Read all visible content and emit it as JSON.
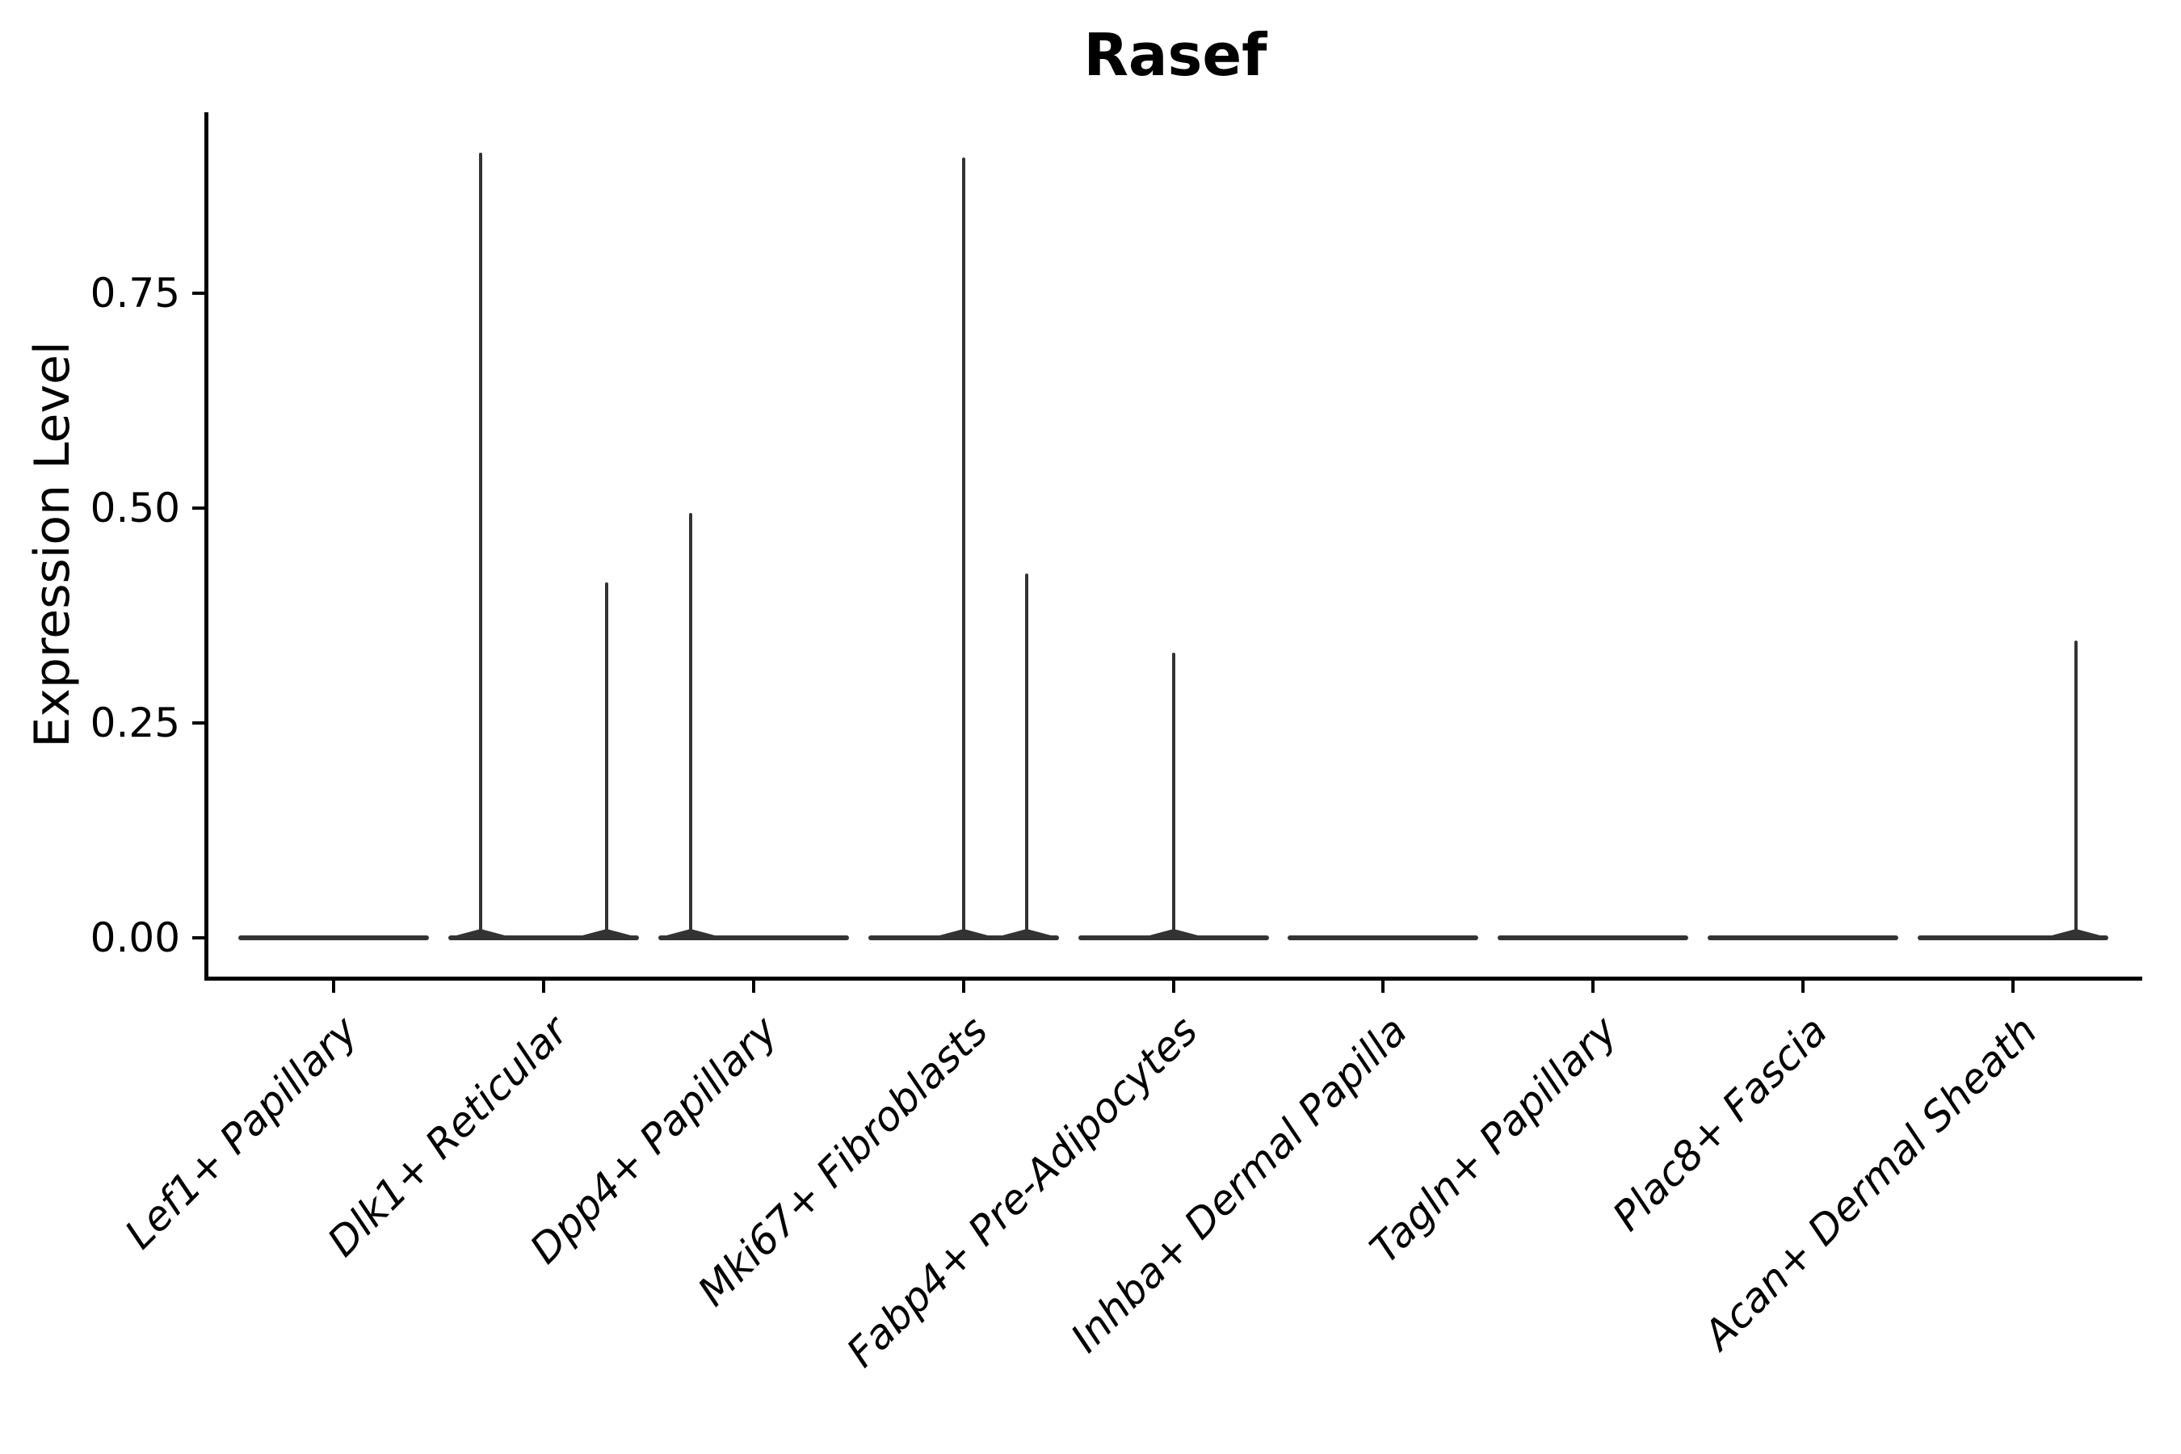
{
  "figure": {
    "background": "#ffffff",
    "stroke_color": "#333333",
    "axis_color": "#000000"
  },
  "chart_data": {
    "type": "violin",
    "title": "Rasef",
    "ylabel": "Expression Level",
    "xlabel": "",
    "grid": "off",
    "legend": "none",
    "ylim": [
      -0.045,
      0.961
    ],
    "yticks": [
      {
        "label": "0.00",
        "value": 0.0
      },
      {
        "label": "0.25",
        "value": 0.25
      },
      {
        "label": "0.50",
        "value": 0.5
      },
      {
        "label": "0.75",
        "value": 0.75
      }
    ],
    "categories": [
      "Lef1+ Papillary",
      "Dlk1+ Reticular",
      "Dpp4+ Papillary",
      "Mki67+ Fibroblasts",
      "Fabp4+ Pre-Adipocytes",
      "Inhba+ Dermal Papilla",
      "Tagln+ Papillary",
      "Plac8+ Fascia",
      "Acan+ Dermal Sheath"
    ],
    "violin_width": 0.91,
    "violins": [
      {
        "category": "Lef1+ Papillary",
        "base_value": 0.0,
        "spikes": []
      },
      {
        "category": "Dlk1+ Reticular",
        "base_value": 0.0,
        "spikes": [
          {
            "offset": -0.3,
            "max": 0.914
          },
          {
            "offset": 0.3,
            "max": 0.414
          }
        ]
      },
      {
        "category": "Dpp4+ Papillary",
        "base_value": 0.0,
        "spikes": [
          {
            "offset": -0.3,
            "max": 0.495
          }
        ]
      },
      {
        "category": "Mki67+ Fibroblasts",
        "base_value": 0.0,
        "spikes": [
          {
            "offset": 0.0,
            "max": 0.908
          },
          {
            "offset": 0.3,
            "max": 0.424
          }
        ]
      },
      {
        "category": "Fabp4+ Pre-Adipocytes",
        "base_value": 0.0,
        "spikes": [
          {
            "offset": 0.0,
            "max": 0.332
          }
        ]
      },
      {
        "category": "Inhba+ Dermal Papilla",
        "base_value": 0.0,
        "spikes": []
      },
      {
        "category": "Tagln+ Papillary",
        "base_value": 0.0,
        "spikes": []
      },
      {
        "category": "Plac8+ Fascia",
        "base_value": 0.0,
        "spikes": []
      },
      {
        "category": "Acan+ Dermal Sheath",
        "base_value": 0.0,
        "spikes": [
          {
            "offset": 0.3,
            "max": 0.346
          }
        ]
      }
    ]
  }
}
